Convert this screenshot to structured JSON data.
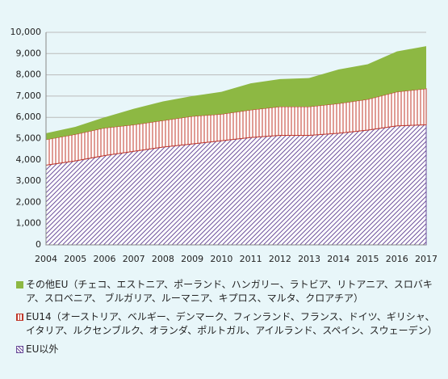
{
  "chart_data": {
    "type": "stacked_area",
    "x": [
      2004,
      2005,
      2006,
      2007,
      2008,
      2009,
      2010,
      2011,
      2012,
      2013,
      2014,
      2015,
      2016,
      2017
    ],
    "xlim": [
      2004,
      2017
    ],
    "series": [
      {
        "name": "その他EU（チェコ、エストニア、ポーランド、ハンガリー、ラトビア、リトアニア、スロバキア、スロベニア、 ブルガリア、ルーマニア、キプロス、マルタ、クロアチア）",
        "color": "#8db843",
        "pattern": "solid",
        "values": [
          300,
          350,
          500,
          750,
          900,
          950,
          1050,
          1250,
          1300,
          1350,
          1600,
          1650,
          1900,
          2000
        ]
      },
      {
        "name": "EU14（オーストリア、ベルギー、デンマーク、フィンランド、フランス、ドイツ、ギリシャ、イタリア、ルクセンブルク、オランダ、ポルトガル、アイルランド、スペイン、スウェーデン）",
        "color": "#c0392b",
        "pattern": "vertical",
        "values": [
          1200,
          1250,
          1300,
          1250,
          1250,
          1300,
          1250,
          1300,
          1350,
          1350,
          1400,
          1450,
          1600,
          1700
        ]
      },
      {
        "name": "EU以外",
        "color": "#6b4e9b",
        "pattern": "diagonal",
        "values": [
          3750,
          3950,
          4200,
          4400,
          4600,
          4750,
          4900,
          5050,
          5150,
          5150,
          5250,
          5400,
          5600,
          5650
        ]
      }
    ],
    "ylim": [
      0,
      10000
    ],
    "yticks": [
      0,
      {
        "value": 1000,
        "label": "1,000"
      },
      {
        "value": 2000,
        "label": "2,000"
      },
      {
        "value": 3000,
        "label": "3,000"
      },
      {
        "value": 4000,
        "label": "4,000"
      },
      {
        "value": 5000,
        "label": "5,000"
      },
      {
        "value": 6000,
        "label": "6,000"
      },
      {
        "value": 7000,
        "label": "7,000"
      },
      {
        "value": 8000,
        "label": "8,000"
      },
      {
        "value": 9000,
        "label": "9,000"
      },
      {
        "value": 10000,
        "label": "10,000"
      }
    ],
    "grid": true
  }
}
